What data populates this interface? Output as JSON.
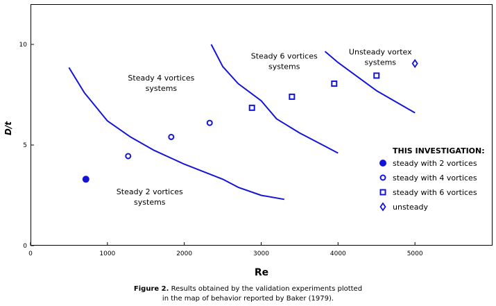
{
  "chart_data": {
    "type": "scatter",
    "xlabel": "Re",
    "ylabel": "D/t",
    "xlim": [
      0,
      6000
    ],
    "ylim": [
      0,
      12
    ],
    "xticks": [
      0,
      1000,
      2000,
      3000,
      4000,
      5000
    ],
    "yticks": [
      0,
      5,
      10
    ],
    "boundaries": [
      {
        "name": "boundary-2-4",
        "x": [
          500,
          700,
          1000,
          1300,
          1600,
          2000,
          2500,
          2700,
          3000,
          3300
        ],
        "y": [
          8.85,
          7.6,
          6.2,
          5.4,
          4.75,
          4.05,
          3.3,
          2.9,
          2.5,
          2.3
        ]
      },
      {
        "name": "boundary-4-6",
        "x": [
          2350,
          2500,
          2700,
          3000,
          3200,
          3500,
          3800,
          4000
        ],
        "y": [
          10.0,
          8.9,
          8.05,
          7.2,
          6.3,
          5.6,
          5.0,
          4.6
        ]
      },
      {
        "name": "boundary-6-unsteady",
        "x": [
          3830,
          4000,
          4500,
          5000
        ],
        "y": [
          9.65,
          9.1,
          7.7,
          6.6
        ]
      }
    ],
    "region_labels": [
      {
        "lines": [
          "Steady 4 vortices",
          "systems"
        ],
        "x": 1700,
        "y": 8.2
      },
      {
        "lines": [
          "Steady 6 vortices",
          "systems"
        ],
        "x": 3300,
        "y": 9.3
      },
      {
        "lines": [
          "Unsteady vortex",
          "systems"
        ],
        "x": 4550,
        "y": 9.5
      },
      {
        "lines": [
          "Steady 2 vortices",
          "systems"
        ],
        "x": 1550,
        "y": 2.55
      }
    ],
    "series": [
      {
        "name": "steady with 2 vortices",
        "marker": "filled-circle",
        "x": [
          720
        ],
        "y": [
          3.3
        ]
      },
      {
        "name": "steady with 4 vortices",
        "marker": "open-circle",
        "x": [
          1270,
          1830,
          2330
        ],
        "y": [
          4.45,
          5.4,
          6.1
        ]
      },
      {
        "name": "steady with 6 vortices",
        "marker": "open-square",
        "x": [
          2880,
          3400,
          3950,
          4500
        ],
        "y": [
          6.85,
          7.4,
          8.05,
          8.45
        ]
      },
      {
        "name": "unsteady",
        "marker": "open-diamond",
        "x": [
          5000
        ],
        "y": [
          9.05
        ]
      }
    ],
    "legend_title": "THIS INVESTIGATION:",
    "color": "#1414d9"
  },
  "caption": {
    "label": "Figure 2.",
    "line1": " Results obtained by the validation experiments plotted",
    "line2": "in the map of behavior reported by Baker (1979)."
  }
}
